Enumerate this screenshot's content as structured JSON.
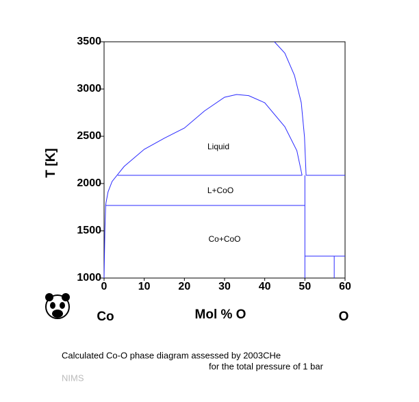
{
  "chart_data": {
    "type": "line",
    "xlabel": "Mol % O",
    "ylabel": "T [K]",
    "xlim": [
      0,
      60
    ],
    "ylim": [
      1000,
      3500
    ],
    "xticks": [
      0,
      10,
      20,
      30,
      40,
      50,
      60
    ],
    "yticks": [
      1000,
      1500,
      2000,
      2500,
      3000,
      3500
    ],
    "left_component": "Co",
    "right_component": "O",
    "annotations": [
      "Liquid",
      "L+CoO",
      "Co+CoO"
    ],
    "series": [
      {
        "color": "#2a2aff",
        "x": [
          0,
          0.2,
          0.4
        ],
        "values": [
          1000,
          1500,
          1768
        ]
      },
      {
        "color": "#2a2aff",
        "x": [
          0.4,
          0.5,
          1,
          2,
          5,
          10,
          15,
          20,
          25,
          30,
          33,
          36,
          40,
          45,
          48,
          49.3
        ],
        "values": [
          1768,
          1800,
          1913,
          2022,
          2181,
          2362,
          2480,
          2587,
          2768,
          2913,
          2942,
          2930,
          2855,
          2601,
          2348,
          2087
        ]
      },
      {
        "color": "#2a2aff",
        "x": [
          42.4,
          45,
          47.4,
          49.1,
          49.9,
          50.3
        ],
        "values": [
          3500,
          3380,
          3145,
          2855,
          2493,
          2087
        ]
      },
      {
        "color": "#2a2aff",
        "x": [
          3.4,
          49.3
        ],
        "values": [
          2087,
          2087
        ]
      },
      {
        "color": "#2a2aff",
        "x": [
          50.3,
          60
        ],
        "values": [
          2087,
          2087
        ]
      },
      {
        "color": "#2a2aff",
        "x": [
          0.4,
          50
        ],
        "values": [
          1768,
          1768
        ]
      },
      {
        "color": "#2a2aff",
        "x": [
          50,
          50
        ],
        "values": [
          2087,
          1000
        ]
      },
      {
        "color": "#2a2aff",
        "x": [
          50,
          60
        ],
        "values": [
          1232,
          1232
        ]
      },
      {
        "color": "#2a2aff",
        "x": [
          57.3,
          57.3
        ],
        "values": [
          1232,
          1000
        ]
      }
    ]
  },
  "caption": [
    "Calculated Co-O phase diagram assessed by 2003CHe",
    "for the total pressure of 1 bar"
  ],
  "credit": "NIMS"
}
